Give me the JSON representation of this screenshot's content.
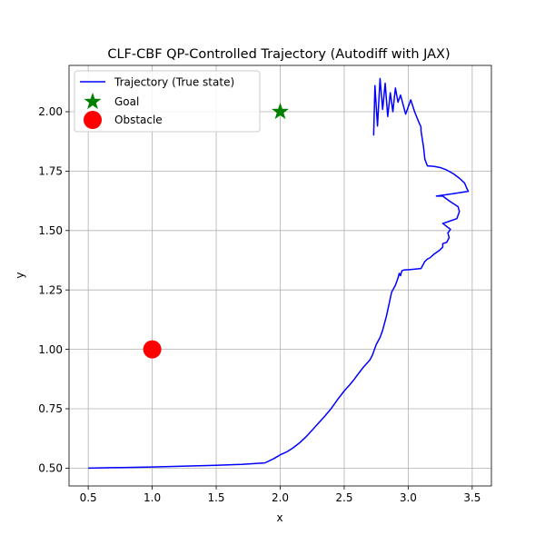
{
  "chart_data": {
    "type": "line",
    "title": "CLF-CBF QP-Controlled Trajectory (Autodiff with JAX)",
    "xlabel": "x",
    "ylabel": "y",
    "xlim": [
      0.35,
      3.65
    ],
    "ylim": [
      0.425,
      2.195
    ],
    "grid": true,
    "legend_position": "top-left",
    "xticks": [
      0.5,
      1.0,
      1.5,
      2.0,
      2.5,
      3.0,
      3.5
    ],
    "xtick_labels": [
      "0.5",
      "1.0",
      "1.5",
      "2.0",
      "2.5",
      "3.0",
      "3.5"
    ],
    "yticks": [
      0.5,
      0.75,
      1.0,
      1.25,
      1.5,
      1.75,
      2.0
    ],
    "ytick_labels": [
      "0.50",
      "0.75",
      "1.00",
      "1.25",
      "1.50",
      "1.75",
      "2.00"
    ],
    "series": [
      {
        "name": "Trajectory (True state)",
        "kind": "line",
        "color": "#0000ff",
        "x": [
          0.5,
          1.0,
          1.5,
          1.7,
          1.88,
          1.95,
          2.0,
          2.05,
          2.1,
          2.15,
          2.2,
          2.25,
          2.3,
          2.35,
          2.4,
          2.45,
          2.5,
          2.55,
          2.58,
          2.6,
          2.65,
          2.7,
          2.72,
          2.75,
          2.78,
          2.8,
          2.83,
          2.85,
          2.87,
          2.9,
          2.92,
          2.93,
          2.94,
          2.95,
          2.96,
          2.98,
          3.0,
          3.1,
          3.13,
          3.15,
          3.17,
          3.2,
          3.24,
          3.27,
          3.27,
          3.3,
          3.32,
          3.31,
          3.33,
          3.27,
          3.3,
          3.38,
          3.4,
          3.39,
          3.32,
          3.27,
          3.22,
          3.35,
          3.47,
          3.46,
          3.44,
          3.4,
          3.35,
          3.3,
          3.25,
          3.2,
          3.15,
          3.13,
          3.12,
          3.1,
          3.1,
          3.08,
          3.05,
          3.02,
          3.0,
          2.98,
          2.96,
          2.94,
          2.92,
          2.9,
          2.88,
          2.86,
          2.84,
          2.82,
          2.8,
          2.78,
          2.76,
          2.74,
          2.73
        ],
        "y": [
          0.5,
          0.505,
          0.512,
          0.516,
          0.522,
          0.54,
          0.556,
          0.568,
          0.585,
          0.606,
          0.631,
          0.66,
          0.69,
          0.72,
          0.752,
          0.79,
          0.825,
          0.855,
          0.875,
          0.89,
          0.925,
          0.955,
          0.975,
          1.02,
          1.05,
          1.08,
          1.14,
          1.19,
          1.24,
          1.27,
          1.3,
          1.32,
          1.31,
          1.33,
          1.333,
          1.335,
          1.335,
          1.34,
          1.37,
          1.38,
          1.385,
          1.4,
          1.415,
          1.43,
          1.445,
          1.45,
          1.47,
          1.49,
          1.505,
          1.53,
          1.535,
          1.55,
          1.58,
          1.6,
          1.625,
          1.645,
          1.645,
          1.655,
          1.665,
          1.675,
          1.7,
          1.72,
          1.74,
          1.755,
          1.765,
          1.77,
          1.772,
          1.8,
          1.85,
          1.92,
          1.935,
          1.96,
          2.0,
          2.05,
          2.02,
          1.99,
          2.03,
          2.07,
          2.04,
          2.1,
          2.0,
          2.08,
          1.98,
          2.12,
          2.01,
          2.14,
          1.94,
          2.11,
          1.9
        ]
      },
      {
        "name": "Goal",
        "kind": "marker",
        "marker": "star",
        "color": "#008000",
        "x": [
          2.0
        ],
        "y": [
          2.0
        ]
      },
      {
        "name": "Obstacle",
        "kind": "marker",
        "marker": "circle",
        "color": "#ff0000",
        "x": [
          1.0
        ],
        "y": [
          1.0
        ]
      }
    ]
  }
}
